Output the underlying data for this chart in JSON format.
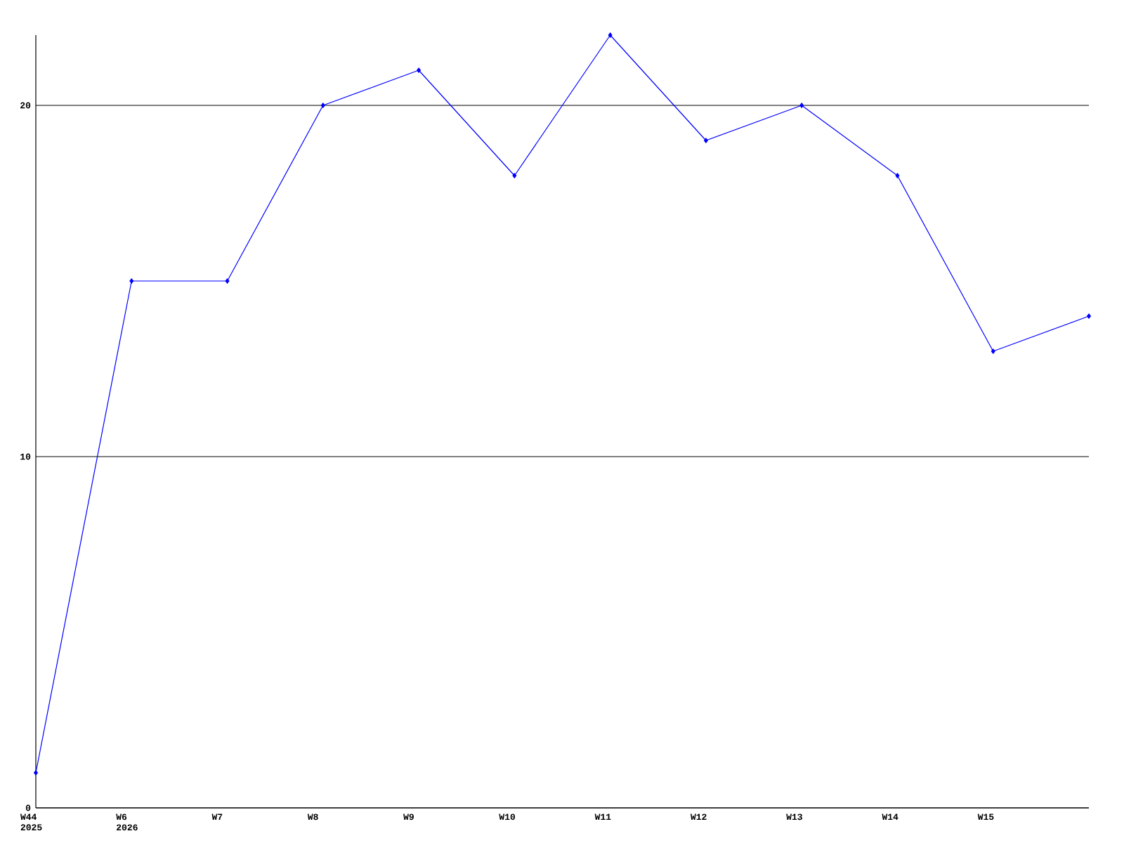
{
  "chart_data": {
    "type": "line",
    "categories": [
      "W44 2025",
      "W6 2026",
      "W7",
      "W8",
      "W9",
      "W10",
      "W11",
      "W12",
      "W13",
      "W14",
      "W15",
      null
    ],
    "series": [
      {
        "color": "#0000ff",
        "values": [
          1,
          15,
          15,
          20,
          21,
          18,
          22,
          19,
          20,
          18,
          13,
          14
        ]
      }
    ],
    "ylim": [
      0,
      22
    ],
    "yticks": [
      0,
      10,
      20
    ],
    "grid": "y",
    "marker": "diamond",
    "line_style": "solid"
  }
}
